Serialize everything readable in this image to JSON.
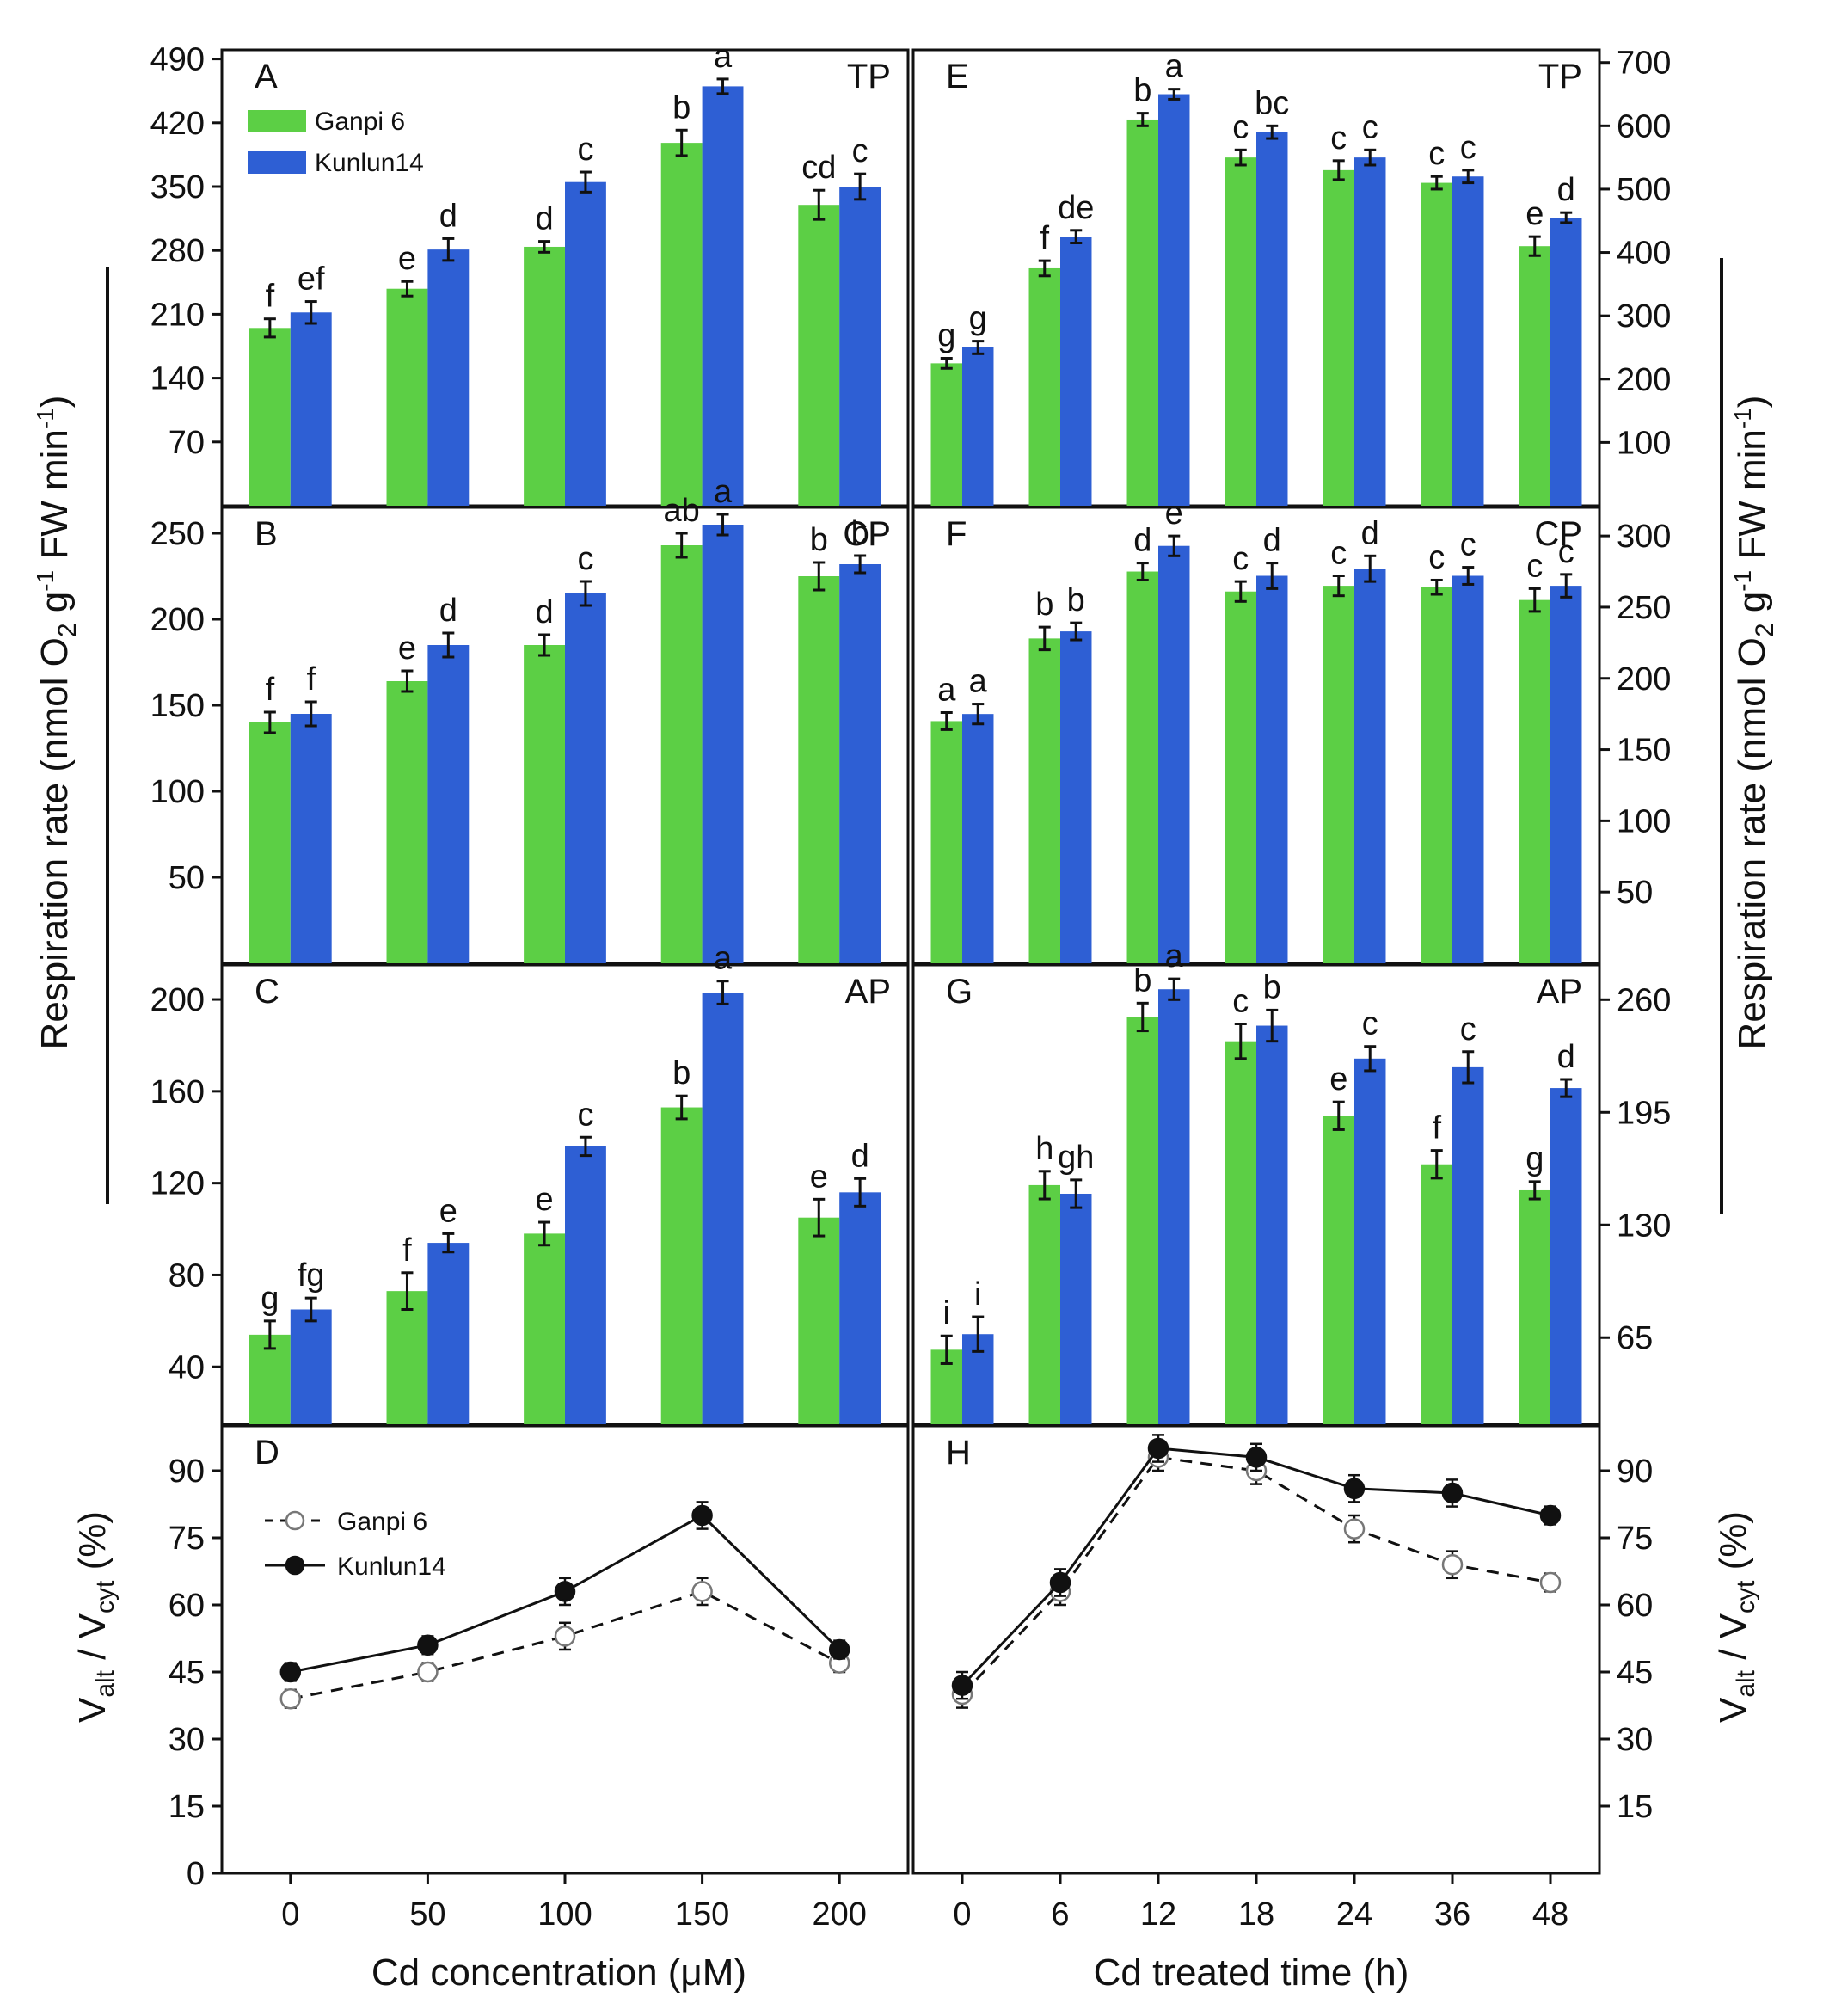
{
  "figure": {
    "x_titles": [
      "Cd  concentration (μM)",
      "Cd  treated time (h)"
    ],
    "y_title_left": "Respiration  rate (nmol O",
    "y_title_left_sub": "2",
    "y_title_left_mid": " g",
    "y_title_left_sup": "-1",
    "y_title_left_end": " FW min",
    "y_title_left_sup2": "-1",
    "y_title_left_close": ")",
    "ratio_title_main1": "V",
    "ratio_title_sub1": "alt",
    "ratio_title_mid": " / V",
    "ratio_title_sub2": "cyt",
    "ratio_title_end": " (%)",
    "ratio_title_main1_right": "V",
    "ratio_title_sub1_right": "alt",
    "ratio_title_mid_right": " / V",
    "ratio_title_sub2_right": "cyt",
    "ratio_title_end_right": " (%)",
    "colors": {
      "ganpi": "#5ccf45",
      "kunlun": "#2e5fd4",
      "line": "#111111"
    }
  },
  "chart_data": [
    {
      "panel": "A",
      "tag": "TP",
      "type": "bar",
      "categories": [
        "0",
        "50",
        "100",
        "150",
        "200"
      ],
      "series": [
        {
          "name": "Ganpi 6",
          "values": [
            195,
            238,
            284,
            398,
            330
          ],
          "errors": [
            10,
            8,
            6,
            14,
            16
          ],
          "labels": [
            "f",
            "e",
            "d",
            "b",
            "cd"
          ]
        },
        {
          "name": "Kunlun14",
          "values": [
            212,
            281,
            355,
            460,
            350
          ],
          "errors": [
            12,
            12,
            11,
            8,
            14
          ],
          "labels": [
            "ef",
            "d",
            "c",
            "a",
            "c"
          ]
        }
      ],
      "ylim": [
        0,
        500
      ],
      "yticks": [
        70,
        140,
        210,
        280,
        350,
        420,
        490
      ],
      "legend": "top-left"
    },
    {
      "panel": "B",
      "tag": "CP",
      "type": "bar",
      "categories": [
        "0",
        "50",
        "100",
        "150",
        "200"
      ],
      "series": [
        {
          "name": "Ganpi 6",
          "values": [
            140,
            164,
            185,
            243,
            225
          ],
          "errors": [
            6,
            6,
            6,
            7,
            8
          ],
          "labels": [
            "f",
            "e",
            "d",
            "ab",
            "b"
          ]
        },
        {
          "name": "Kunlun14",
          "values": [
            145,
            185,
            215,
            255,
            232
          ],
          "errors": [
            7,
            7,
            7,
            6,
            5
          ],
          "labels": [
            "f",
            "d",
            "c",
            "a",
            "b"
          ]
        }
      ],
      "ylim": [
        0,
        265
      ],
      "yticks": [
        50,
        100,
        150,
        200,
        250
      ]
    },
    {
      "panel": "C",
      "tag": "AP",
      "type": "bar",
      "categories": [
        "0",
        "50",
        "100",
        "150",
        "200"
      ],
      "series": [
        {
          "name": "Ganpi 6",
          "values": [
            54,
            73,
            98,
            153,
            105
          ],
          "errors": [
            6,
            8,
            5,
            5,
            8
          ],
          "labels": [
            "g",
            "f",
            "e",
            "b",
            "e"
          ]
        },
        {
          "name": "Kunlun14",
          "values": [
            65,
            94,
            136,
            203,
            116
          ],
          "errors": [
            5,
            4,
            4,
            5,
            6
          ],
          "labels": [
            "fg",
            "e",
            "c",
            "a",
            "d"
          ]
        }
      ],
      "ylim": [
        15,
        215
      ],
      "yticks": [
        40,
        80,
        120,
        160,
        200
      ]
    },
    {
      "panel": "D",
      "type": "line",
      "x": [
        "0",
        "50",
        "100",
        "150",
        "200"
      ],
      "series": [
        {
          "name": "Ganpi 6",
          "style": "dashed-open",
          "values": [
            39,
            45,
            53,
            63,
            47
          ],
          "errors": [
            2,
            2,
            3,
            3,
            2
          ]
        },
        {
          "name": "Kunlun14",
          "style": "solid-filled",
          "values": [
            45,
            51,
            63,
            80,
            50
          ],
          "errors": [
            2,
            2,
            3,
            3,
            2
          ]
        }
      ],
      "ylim": [
        0,
        100
      ],
      "yticks": [
        0,
        15,
        30,
        45,
        60,
        75,
        90
      ],
      "legend": "top-left"
    },
    {
      "panel": "E",
      "tag": "TP",
      "type": "bar",
      "categories": [
        "0",
        "6",
        "12",
        "18",
        "24",
        "36",
        "48"
      ],
      "series": [
        {
          "name": "Ganpi 6",
          "values": [
            225,
            375,
            610,
            550,
            530,
            510,
            410
          ],
          "errors": [
            8,
            12,
            10,
            12,
            15,
            10,
            15
          ]
        },
        {
          "name": "Kunlun14",
          "values": [
            250,
            425,
            650,
            590,
            550,
            520,
            455
          ],
          "errors": [
            10,
            10,
            8,
            10,
            12,
            10,
            8
          ]
        }
      ],
      "sig_labels": [
        [
          "g",
          "g"
        ],
        [
          "f",
          "de"
        ],
        [
          "b",
          "a"
        ],
        [
          "c",
          "bc"
        ],
        [
          "c",
          "c"
        ],
        [
          "c",
          "c"
        ],
        [
          "e",
          "d"
        ]
      ],
      "ylim": [
        0,
        720
      ],
      "yticks": [
        100,
        200,
        300,
        400,
        500,
        600,
        700
      ]
    },
    {
      "panel": "F",
      "tag": "CP",
      "type": "bar",
      "categories": [
        "0",
        "6",
        "12",
        "18",
        "24",
        "36",
        "48"
      ],
      "series": [
        {
          "name": "Ganpi 6",
          "values": [
            170,
            228,
            275,
            261,
            265,
            264,
            255
          ],
          "errors": [
            6,
            8,
            6,
            7,
            7,
            5,
            8
          ]
        },
        {
          "name": "Kunlun14",
          "values": [
            175,
            233,
            293,
            272,
            277,
            272,
            265
          ],
          "errors": [
            7,
            6,
            7,
            9,
            9,
            6,
            8
          ]
        }
      ],
      "sig_labels": [
        [
          "a",
          "a"
        ],
        [
          "b",
          "b"
        ],
        [
          "d",
          "e"
        ],
        [
          "c",
          "d"
        ],
        [
          "c",
          "d"
        ],
        [
          "c",
          "c"
        ],
        [
          "c",
          "c"
        ]
      ],
      "ylim": [
        0,
        320
      ],
      "yticks": [
        50,
        100,
        150,
        200,
        250,
        300
      ]
    },
    {
      "panel": "G",
      "tag": "AP",
      "type": "bar",
      "categories": [
        "0",
        "6",
        "12",
        "18",
        "24",
        "36",
        "48"
      ],
      "series": [
        {
          "name": "Ganpi 6",
          "values": [
            58,
            153,
            250,
            236,
            193,
            165,
            150
          ],
          "errors": [
            8,
            8,
            8,
            10,
            8,
            8,
            5
          ]
        },
        {
          "name": "Kunlun14",
          "values": [
            67,
            148,
            266,
            245,
            226,
            221,
            209
          ],
          "errors": [
            10,
            8,
            6,
            9,
            7,
            9,
            5
          ]
        }
      ],
      "sig_labels": [
        [
          "i",
          "i"
        ],
        [
          "h",
          "gh"
        ],
        [
          "b",
          "a"
        ],
        [
          "c",
          "b"
        ],
        [
          "e",
          "c"
        ],
        [
          "f",
          "c"
        ],
        [
          "g",
          "d"
        ]
      ],
      "ylim": [
        15,
        280
      ],
      "yticks": [
        65,
        130,
        195,
        260
      ]
    },
    {
      "panel": "H",
      "type": "line",
      "x": [
        "0",
        "6",
        "12",
        "18",
        "24",
        "36",
        "48"
      ],
      "series": [
        {
          "name": "Ganpi 6",
          "style": "dashed-open",
          "values": [
            40,
            63,
            93,
            90,
            77,
            69,
            65
          ],
          "errors": [
            3,
            3,
            3,
            3,
            3,
            3,
            2
          ]
        },
        {
          "name": "Kunlun14",
          "style": "solid-filled",
          "values": [
            42,
            65,
            95,
            93,
            86,
            85,
            80
          ],
          "errors": [
            3,
            3,
            3,
            3,
            3,
            3,
            2
          ]
        }
      ],
      "ylim": [
        0,
        100
      ],
      "yticks": [
        15,
        30,
        45,
        60,
        75,
        90
      ]
    }
  ]
}
